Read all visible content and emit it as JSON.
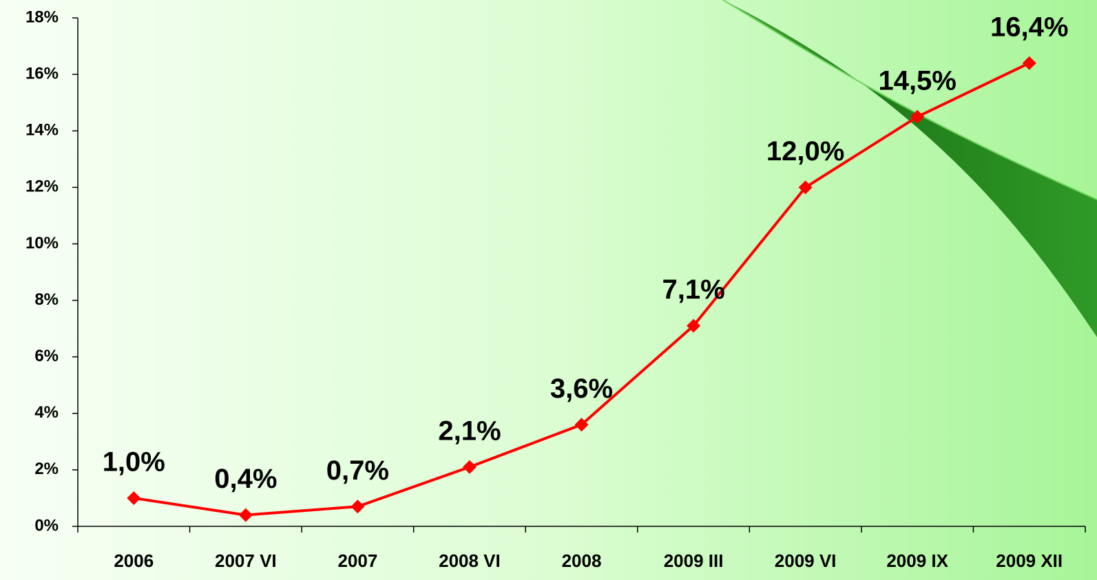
{
  "chart_data": {
    "type": "line",
    "categories": [
      "2006",
      "2007 VI",
      "2007",
      "2008 VI",
      "2008",
      "2009 III",
      "2009 VI",
      "2009 IX",
      "2009 XII"
    ],
    "series": [
      {
        "color": "#ff0000",
        "values": [
          1.0,
          0.4,
          0.7,
          2.1,
          3.6,
          7.1,
          12.0,
          14.5,
          16.4
        ],
        "value_labels": [
          "1,0%",
          "0,4%",
          "0,7%",
          "2,1%",
          "3,6%",
          "7,1%",
          "12,0%",
          "14,5%",
          "16,4%"
        ]
      }
    ],
    "ylim": [
      0,
      18
    ],
    "yticks": [
      {
        "value": 0,
        "label": "0%"
      },
      {
        "value": 2,
        "label": "2%"
      },
      {
        "value": 4,
        "label": "4%"
      },
      {
        "value": 6,
        "label": "6%"
      },
      {
        "value": 8,
        "label": "8%"
      },
      {
        "value": 10,
        "label": "10%"
      },
      {
        "value": 12,
        "label": "12%"
      },
      {
        "value": 14,
        "label": "14%"
      },
      {
        "value": 16,
        "label": "16%"
      },
      {
        "value": 18,
        "label": "18%"
      }
    ],
    "grid": false
  }
}
